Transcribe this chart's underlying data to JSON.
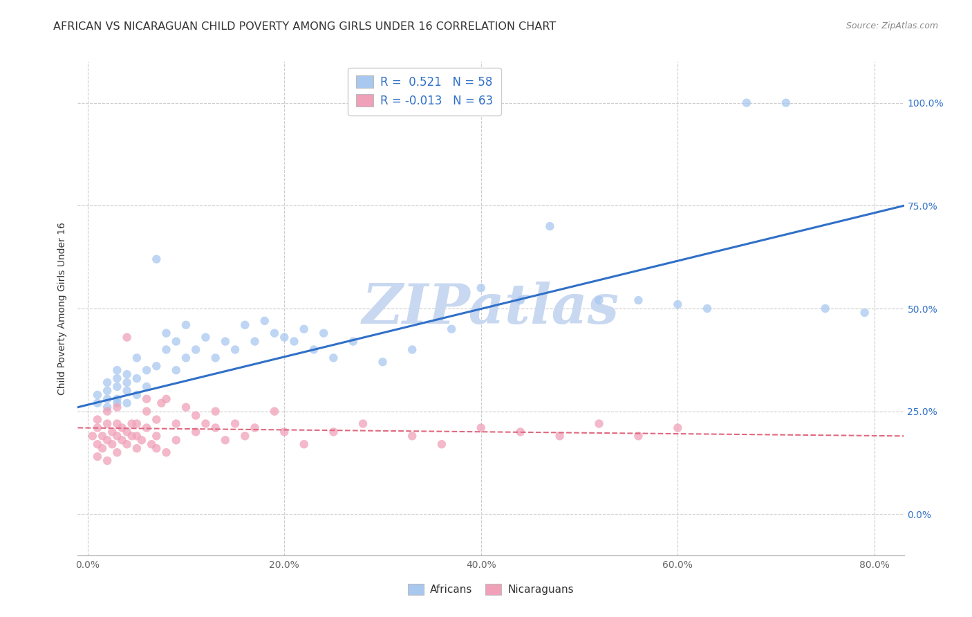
{
  "title": "AFRICAN VS NICARAGUAN CHILD POVERTY AMONG GIRLS UNDER 16 CORRELATION CHART",
  "source": "Source: ZipAtlas.com",
  "ylabel": "Child Poverty Among Girls Under 16",
  "xlim": [
    -0.01,
    0.83
  ],
  "ylim": [
    -0.1,
    1.1
  ],
  "xlabel_vals": [
    0.0,
    0.2,
    0.4,
    0.6,
    0.8
  ],
  "xlabel_ticks": [
    "0.0%",
    "20.0%",
    "40.0%",
    "60.0%",
    "80.0%"
  ],
  "ylabel_vals": [
    0.0,
    0.25,
    0.5,
    0.75,
    1.0
  ],
  "ylabel_ticks": [
    "0.0%",
    "25.0%",
    "50.0%",
    "75.0%",
    "100.0%"
  ],
  "african_R": 0.521,
  "african_N": 58,
  "nicaraguan_R": -0.013,
  "nicaraguan_N": 63,
  "african_color": "#a8c8f0",
  "nicaraguan_color": "#f0a0b8",
  "african_line_color": "#3070c8",
  "nicaraguan_line_color": "#e06880",
  "watermark": "ZIPatlas",
  "watermark_color": "#c8d8f0",
  "title_fontsize": 11.5,
  "label_fontsize": 10,
  "tick_fontsize": 10,
  "source_fontsize": 9,
  "african_line_start_y": 0.26,
  "african_line_end_y": 0.75,
  "nicaraguan_line_start_y": 0.21,
  "nicaraguan_line_end_y": 0.19,
  "african_x": [
    0.01,
    0.01,
    0.02,
    0.02,
    0.02,
    0.02,
    0.03,
    0.03,
    0.03,
    0.03,
    0.03,
    0.04,
    0.04,
    0.04,
    0.04,
    0.05,
    0.05,
    0.05,
    0.06,
    0.06,
    0.07,
    0.07,
    0.08,
    0.08,
    0.09,
    0.09,
    0.1,
    0.1,
    0.11,
    0.12,
    0.13,
    0.14,
    0.15,
    0.16,
    0.17,
    0.18,
    0.19,
    0.2,
    0.21,
    0.22,
    0.23,
    0.24,
    0.25,
    0.27,
    0.3,
    0.33,
    0.37,
    0.4,
    0.44,
    0.47,
    0.52,
    0.56,
    0.6,
    0.63,
    0.67,
    0.71,
    0.75,
    0.79
  ],
  "african_y": [
    0.27,
    0.29,
    0.28,
    0.26,
    0.3,
    0.32,
    0.27,
    0.31,
    0.33,
    0.35,
    0.28,
    0.3,
    0.32,
    0.27,
    0.34,
    0.29,
    0.33,
    0.38,
    0.31,
    0.35,
    0.62,
    0.36,
    0.4,
    0.44,
    0.35,
    0.42,
    0.38,
    0.46,
    0.4,
    0.43,
    0.38,
    0.42,
    0.4,
    0.46,
    0.42,
    0.47,
    0.44,
    0.43,
    0.42,
    0.45,
    0.4,
    0.44,
    0.38,
    0.42,
    0.37,
    0.4,
    0.45,
    0.55,
    0.52,
    0.7,
    0.52,
    0.52,
    0.51,
    0.5,
    1.0,
    1.0,
    0.5,
    0.49
  ],
  "nicaraguan_x": [
    0.005,
    0.01,
    0.01,
    0.01,
    0.01,
    0.015,
    0.015,
    0.02,
    0.02,
    0.02,
    0.02,
    0.025,
    0.025,
    0.03,
    0.03,
    0.03,
    0.03,
    0.035,
    0.035,
    0.04,
    0.04,
    0.04,
    0.045,
    0.045,
    0.05,
    0.05,
    0.05,
    0.055,
    0.06,
    0.06,
    0.06,
    0.065,
    0.07,
    0.07,
    0.07,
    0.075,
    0.08,
    0.08,
    0.09,
    0.09,
    0.1,
    0.11,
    0.11,
    0.12,
    0.13,
    0.13,
    0.14,
    0.15,
    0.16,
    0.17,
    0.19,
    0.2,
    0.22,
    0.25,
    0.28,
    0.33,
    0.36,
    0.4,
    0.44,
    0.48,
    0.52,
    0.56,
    0.6
  ],
  "nicaraguan_y": [
    0.19,
    0.14,
    0.17,
    0.21,
    0.23,
    0.16,
    0.19,
    0.13,
    0.18,
    0.22,
    0.25,
    0.17,
    0.2,
    0.15,
    0.19,
    0.22,
    0.26,
    0.18,
    0.21,
    0.17,
    0.2,
    0.43,
    0.19,
    0.22,
    0.16,
    0.19,
    0.22,
    0.18,
    0.21,
    0.25,
    0.28,
    0.17,
    0.16,
    0.19,
    0.23,
    0.27,
    0.15,
    0.28,
    0.18,
    0.22,
    0.26,
    0.2,
    0.24,
    0.22,
    0.21,
    0.25,
    0.18,
    0.22,
    0.19,
    0.21,
    0.25,
    0.2,
    0.17,
    0.2,
    0.22,
    0.19,
    0.17,
    0.21,
    0.2,
    0.19,
    0.22,
    0.19,
    0.21
  ]
}
